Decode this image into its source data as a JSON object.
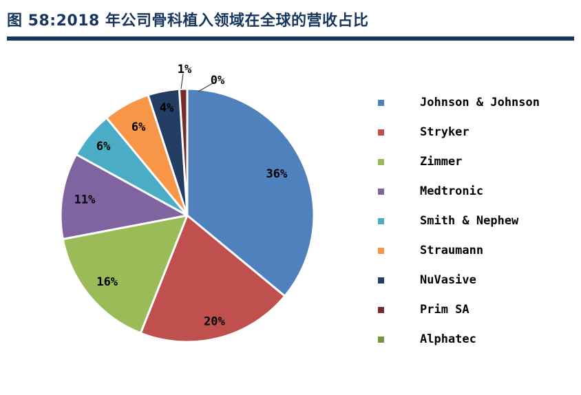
{
  "title": "图 58:2018 年公司骨科植入领域在全球的营收占比",
  "accent_color": "#17365d",
  "chart_data": {
    "type": "pie",
    "title": "2018 年公司骨科植入领域在全球的营收占比",
    "unit": "%",
    "label_format": "percent",
    "legend_position": "right",
    "start_angle_deg": 0,
    "direction": "clockwise",
    "series": [
      {
        "name": "Johnson & Johnson",
        "value": 36,
        "label": "36%",
        "color": "#4f81bd"
      },
      {
        "name": "Stryker",
        "value": 20,
        "label": "20%",
        "color": "#c0504d"
      },
      {
        "name": "Zimmer",
        "value": 16,
        "label": "16%",
        "color": "#9bbb59"
      },
      {
        "name": "Medtronic",
        "value": 11,
        "label": "11%",
        "color": "#8064a2"
      },
      {
        "name": "Smith & Nephew",
        "value": 6,
        "label": "6%",
        "color": "#4bacc6"
      },
      {
        "name": "Straumann",
        "value": 6,
        "label": "6%",
        "color": "#f79646"
      },
      {
        "name": "NuVasive",
        "value": 4,
        "label": "4%",
        "color": "#243e63"
      },
      {
        "name": "Prim SA",
        "value": 1,
        "label": "1%",
        "color": "#772c2a"
      },
      {
        "name": "Alphatec",
        "value": 0,
        "label": "0%",
        "color": "#77933c"
      }
    ]
  }
}
